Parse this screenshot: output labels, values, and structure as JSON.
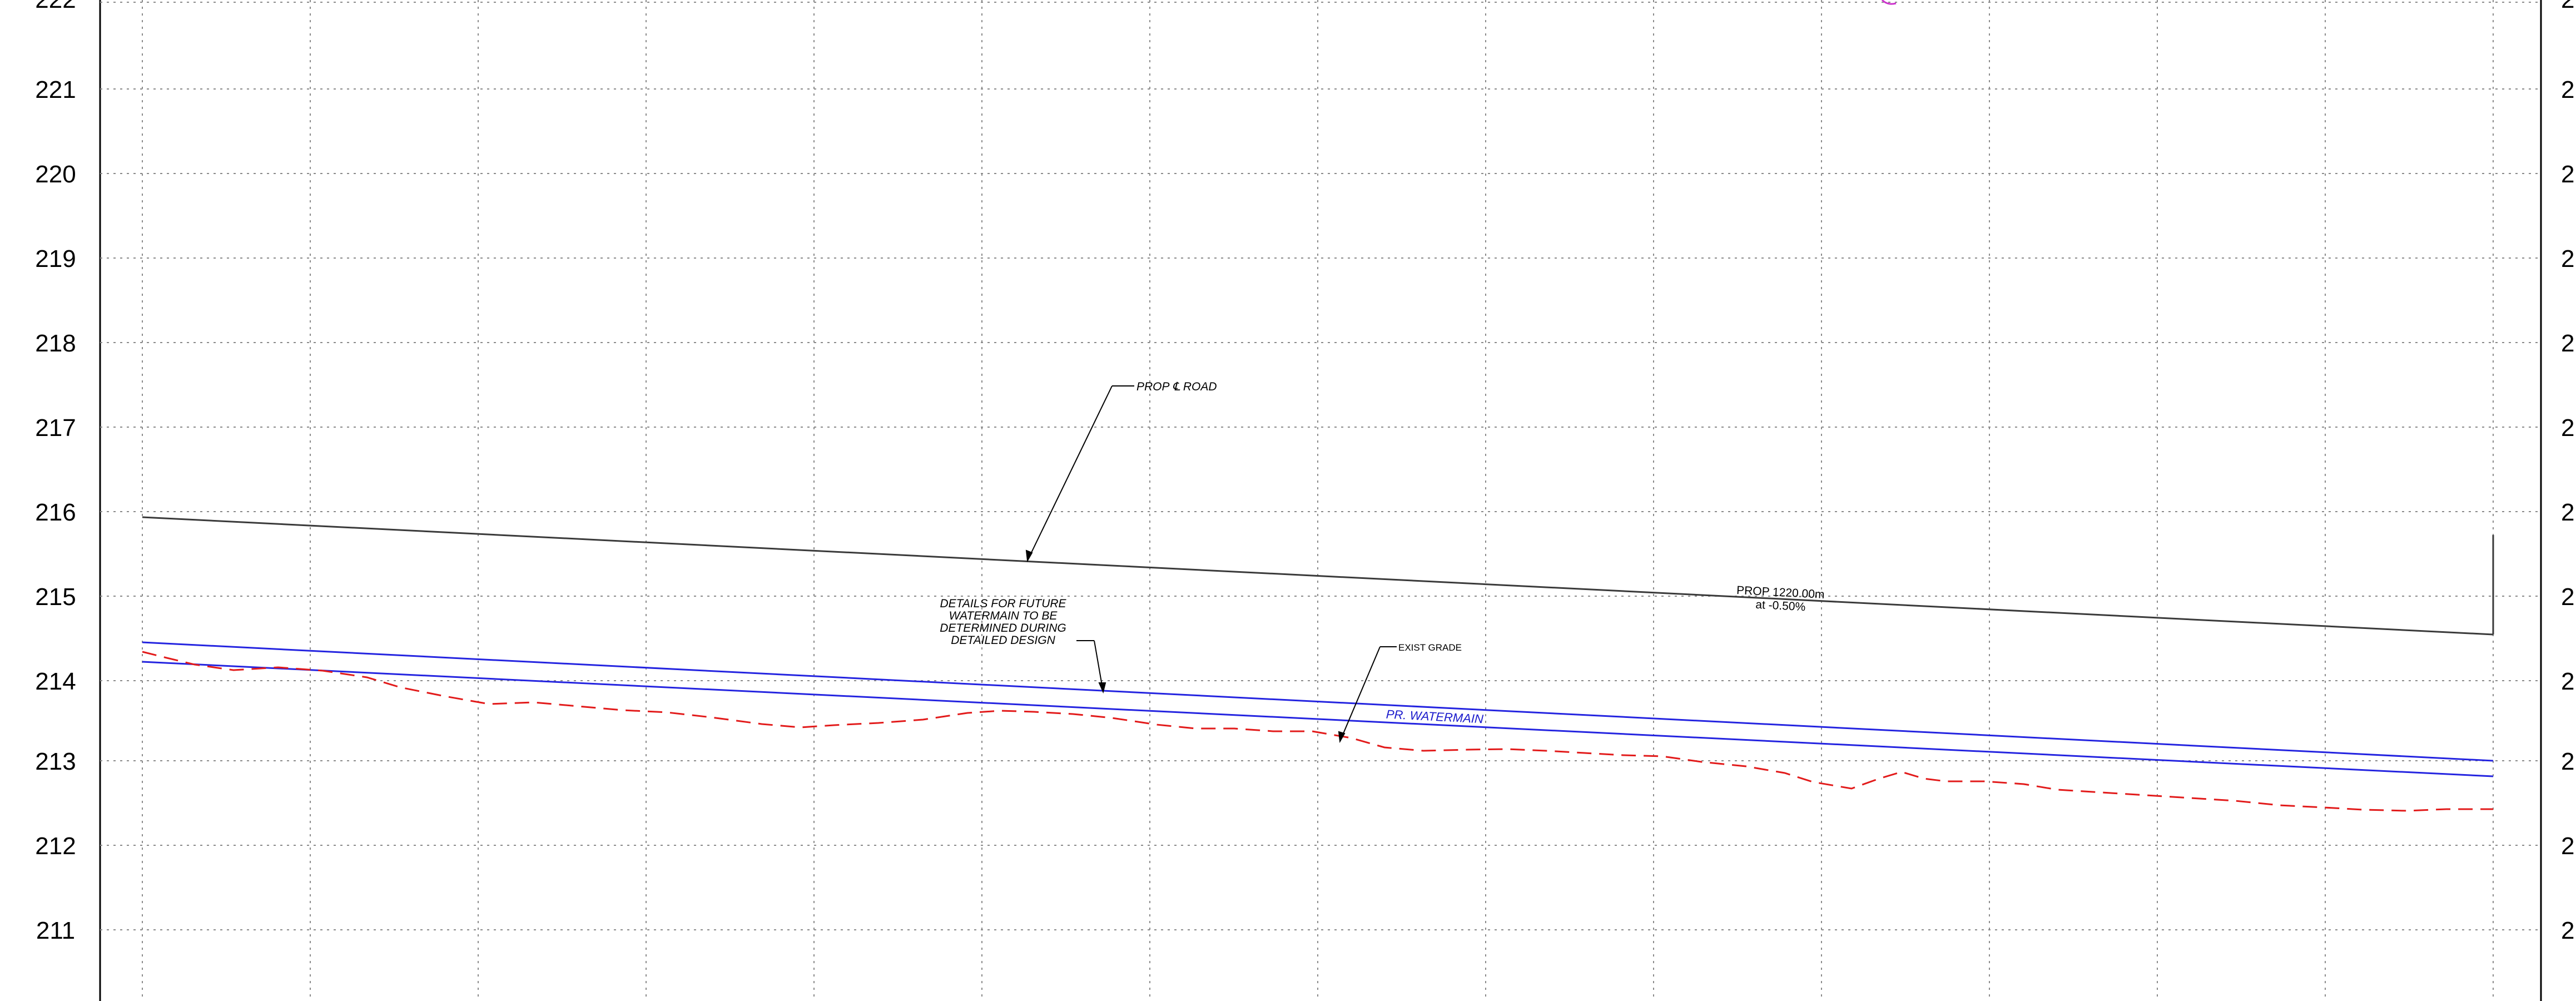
{
  "profile": {
    "elevations": [
      "222",
      "221",
      "220",
      "219",
      "218",
      "217",
      "216",
      "215",
      "214",
      "213",
      "212",
      "211"
    ],
    "right_elevation_labels": [
      "2",
      "2",
      "2",
      "2",
      "2",
      "2",
      "2",
      "2",
      "2",
      "2",
      "2",
      "2"
    ],
    "colors": {
      "grid": "#8a8a8a",
      "road": "#3a3a3a",
      "watermain": "#2424e0",
      "existing_grade": "#e21b1b",
      "magenta_fragment": "#cc33cc"
    },
    "annotations": {
      "road_label": "PROP ℄ ROAD",
      "note_lines": [
        "DETAILS FOR FUTURE",
        "WATERMAIN TO BE",
        "DETERMINED DURING",
        "DETAILED DESIGN"
      ],
      "exist_grade": "EXIST GRADE",
      "watermain": "PR. WATERMAIN",
      "grade_length": "PROP 1220.00m",
      "grade_slope": "at -0.50%"
    }
  }
}
